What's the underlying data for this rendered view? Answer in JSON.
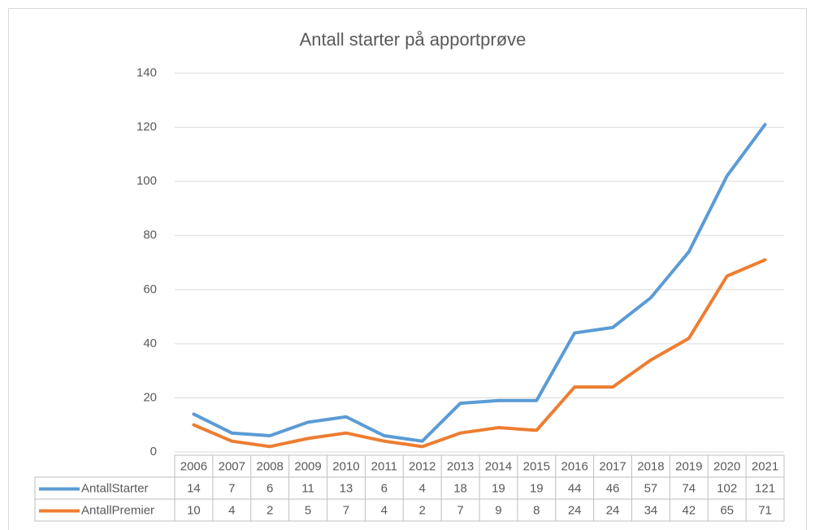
{
  "chart_data": {
    "type": "line",
    "title": "Antall starter på apportprøve",
    "categories": [
      "2006",
      "2007",
      "2008",
      "2009",
      "2010",
      "2011",
      "2012",
      "2013",
      "2014",
      "2015",
      "2016",
      "2017",
      "2018",
      "2019",
      "2020",
      "2021"
    ],
    "series": [
      {
        "name": "AntallStarter",
        "color": "#5b9bd5",
        "values": [
          14,
          7,
          6,
          11,
          13,
          6,
          4,
          18,
          19,
          19,
          44,
          46,
          57,
          74,
          102,
          121
        ]
      },
      {
        "name": "AntallPremier",
        "color": "#ed7d31",
        "values": [
          10,
          4,
          2,
          5,
          7,
          4,
          2,
          7,
          9,
          8,
          24,
          24,
          34,
          42,
          65,
          71
        ]
      }
    ],
    "ylim": [
      0,
      140
    ],
    "yticks": [
      0,
      20,
      40,
      60,
      80,
      100,
      120,
      140
    ],
    "grid": true
  }
}
